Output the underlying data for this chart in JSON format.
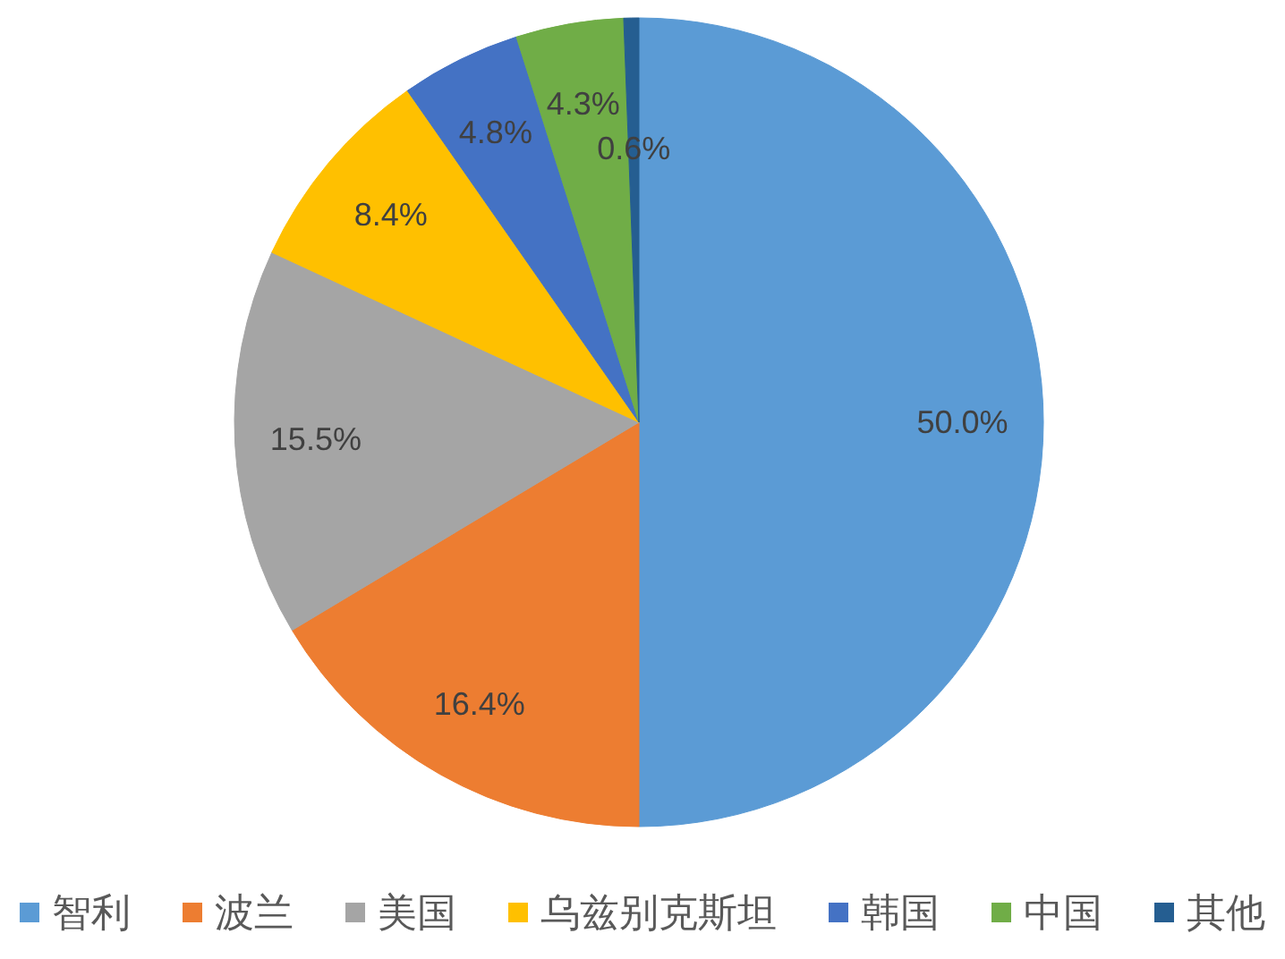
{
  "chart_data": {
    "type": "pie",
    "categories": [
      "智利",
      "波兰",
      "美国",
      "乌兹别克斯坦",
      "韩国",
      "中国",
      "其他"
    ],
    "values": [
      50.0,
      16.4,
      15.5,
      8.4,
      4.8,
      4.3,
      0.6
    ],
    "colors": [
      "#5b9bd5",
      "#ed7d31",
      "#a5a5a5",
      "#ffc000",
      "#4472c4",
      "#70ad47",
      "#255e91"
    ],
    "value_labels": [
      "50.0%",
      "16.4%",
      "15.5%",
      "8.4%",
      "4.8%",
      "4.3%",
      "0.6%"
    ],
    "legend": "bottom"
  }
}
